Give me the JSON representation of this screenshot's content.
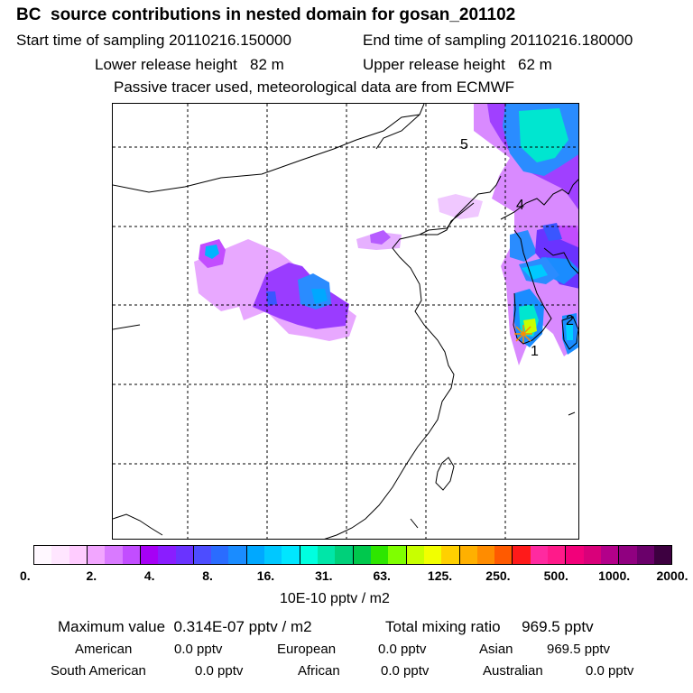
{
  "header": {
    "title": "BC  source contributions in nested domain for gosan_201102",
    "start_time": "Start time of sampling 20110216.150000",
    "end_time": "End time of sampling 20110216.180000",
    "lower_height": "Lower release height   82 m",
    "upper_height": "Upper release height   62 m",
    "tracer_note": "Passive tracer used, meteorological data are from ECMWF"
  },
  "map": {
    "labels": [
      "5",
      "4",
      "2",
      "1"
    ],
    "receptor_marker_color": "#ff8c00"
  },
  "colorbar": {
    "tick_labels": [
      "0.",
      "2.",
      "4.",
      "8.",
      "16.",
      "31.",
      "63.",
      "125.",
      "250.",
      "500.",
      "1000.",
      "2000."
    ],
    "units": "10E-10 pptv / m2",
    "colors": [
      "#fff8ff",
      "#ffe6ff",
      "#ffccff",
      "#f2a6ff",
      "#d97aff",
      "#c24dff",
      "#a600f5",
      "#8a1dff",
      "#6a33ff",
      "#4d4dff",
      "#2a6cff",
      "#1a8cff",
      "#00a8ff",
      "#00c8ff",
      "#00e6ff",
      "#00ffdf",
      "#00e6a8",
      "#00d07a",
      "#00c84d",
      "#2ee600",
      "#7fff00",
      "#c8ff00",
      "#f2ff00",
      "#ffd000",
      "#ffb000",
      "#ff8c00",
      "#ff5a00",
      "#ff1a1a",
      "#ff2aa0",
      "#ff1a8a",
      "#f2007a",
      "#d9007a",
      "#b3008a",
      "#900080",
      "#6a006a",
      "#3d0040"
    ]
  },
  "summary": {
    "max_value": "Maximum value  0.314E-07 pptv / m2",
    "total_mixing": "Total mixing ratio     969.5 pptv",
    "american": {
      "label": "American",
      "value": "0.0 pptv"
    },
    "european": {
      "label": "European",
      "value": "0.0 pptv"
    },
    "asian": {
      "label": "Asian",
      "value": "969.5 pptv"
    },
    "south_american": {
      "label": "South American",
      "value": "0.0 pptv"
    },
    "african": {
      "label": "African",
      "value": "0.0 pptv"
    },
    "australian": {
      "label": "Australian",
      "value": "0.0 pptv"
    }
  }
}
